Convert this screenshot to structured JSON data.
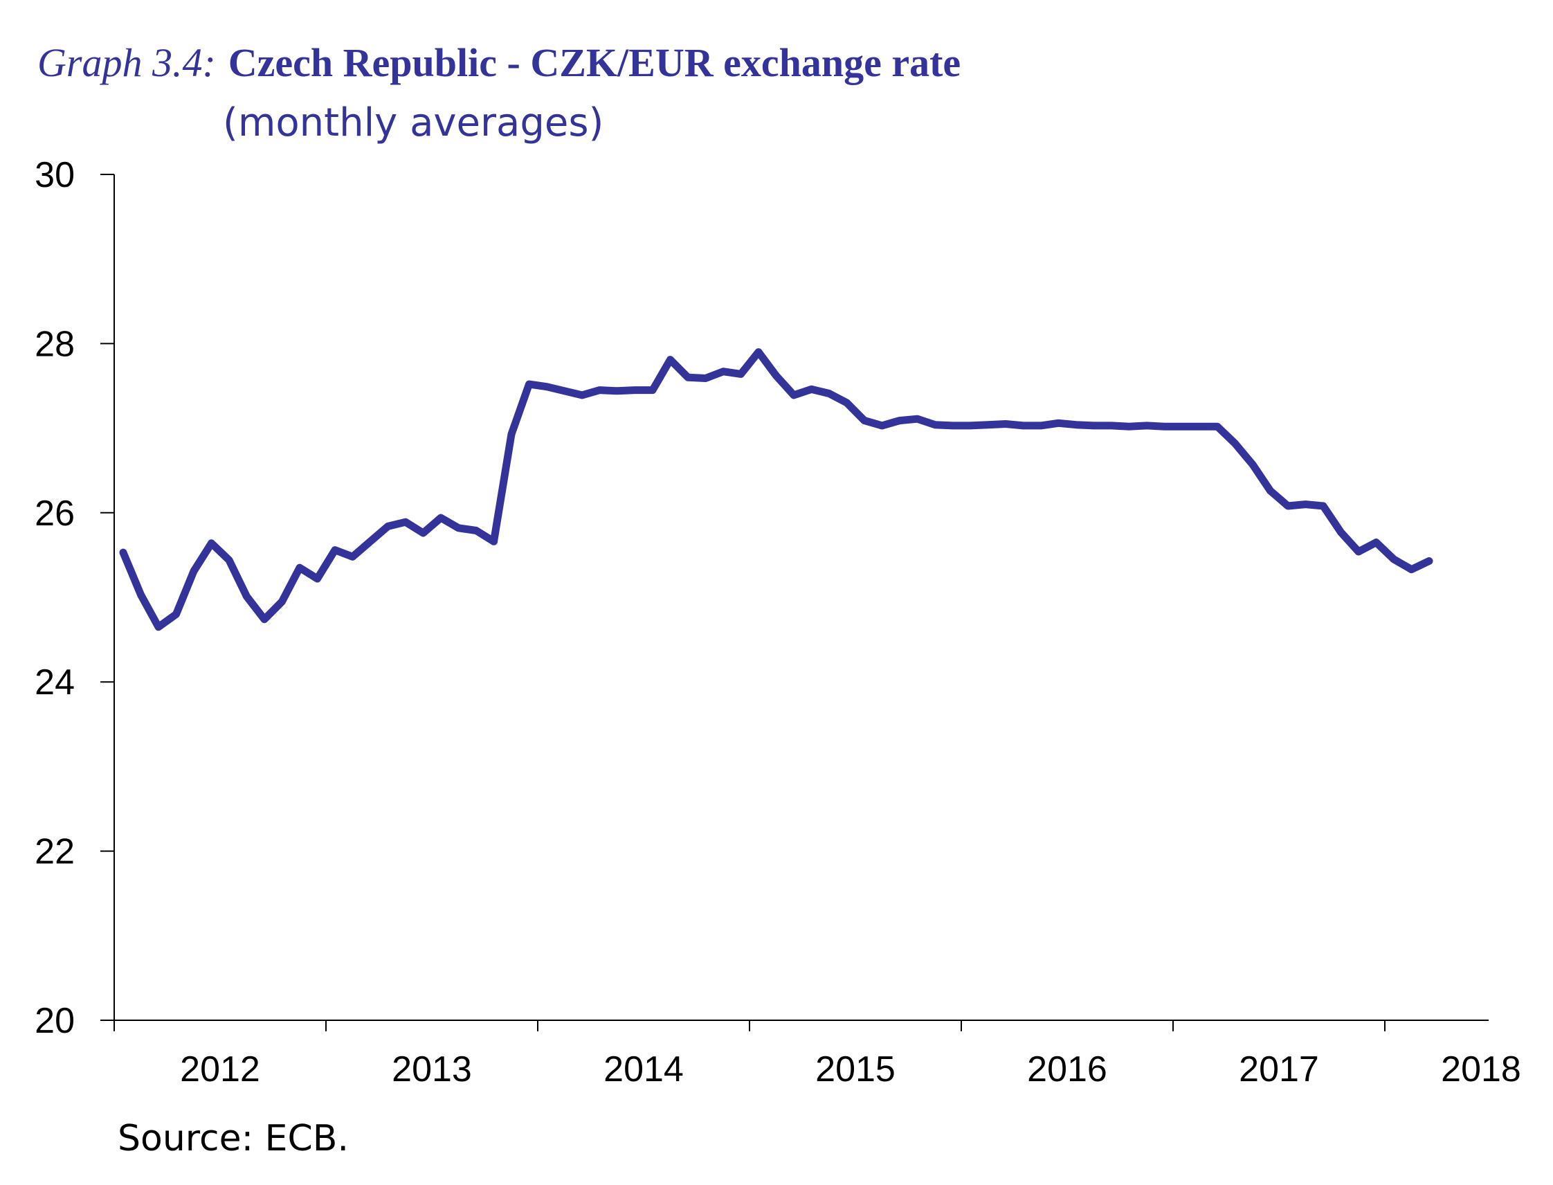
{
  "chart_data": {
    "type": "line",
    "title_prefix": "Graph 3.4:",
    "title": "Czech Republic - CZK/EUR exchange rate",
    "subtitle": "(monthly averages)",
    "xlabel": "",
    "ylabel": "",
    "ylim": [
      20,
      30
    ],
    "yticks": [
      "20",
      "22",
      "24",
      "26",
      "28",
      "30"
    ],
    "ytick_values": [
      20,
      22,
      24,
      26,
      28,
      30
    ],
    "xticks": [
      "2012",
      "2013",
      "2014",
      "2015",
      "2016",
      "2017",
      "2018"
    ],
    "x_start": "2012-01",
    "x_end": "2018-03",
    "grid": false,
    "series": [
      {
        "name": "CZK/EUR",
        "color": "#333399",
        "values": [
          25.53,
          25.03,
          24.65,
          24.8,
          25.31,
          25.64,
          25.44,
          25.01,
          24.74,
          24.95,
          25.35,
          25.22,
          25.56,
          25.48,
          25.66,
          25.84,
          25.89,
          25.76,
          25.94,
          25.82,
          25.79,
          25.66,
          26.93,
          27.52,
          27.49,
          27.44,
          27.39,
          27.45,
          27.44,
          27.45,
          27.45,
          27.81,
          27.6,
          27.59,
          27.67,
          27.64,
          27.9,
          27.62,
          27.39,
          27.46,
          27.41,
          27.3,
          27.09,
          27.03,
          27.09,
          27.11,
          27.04,
          27.03,
          27.03,
          27.04,
          27.05,
          27.03,
          27.03,
          27.06,
          27.04,
          27.03,
          27.03,
          27.02,
          27.03,
          27.02,
          27.02,
          27.02,
          27.02,
          26.82,
          26.57,
          26.26,
          26.08,
          26.1,
          26.08,
          25.77,
          25.54,
          25.65,
          25.45,
          25.33,
          25.43
        ]
      }
    ],
    "source": "Source: ECB."
  }
}
